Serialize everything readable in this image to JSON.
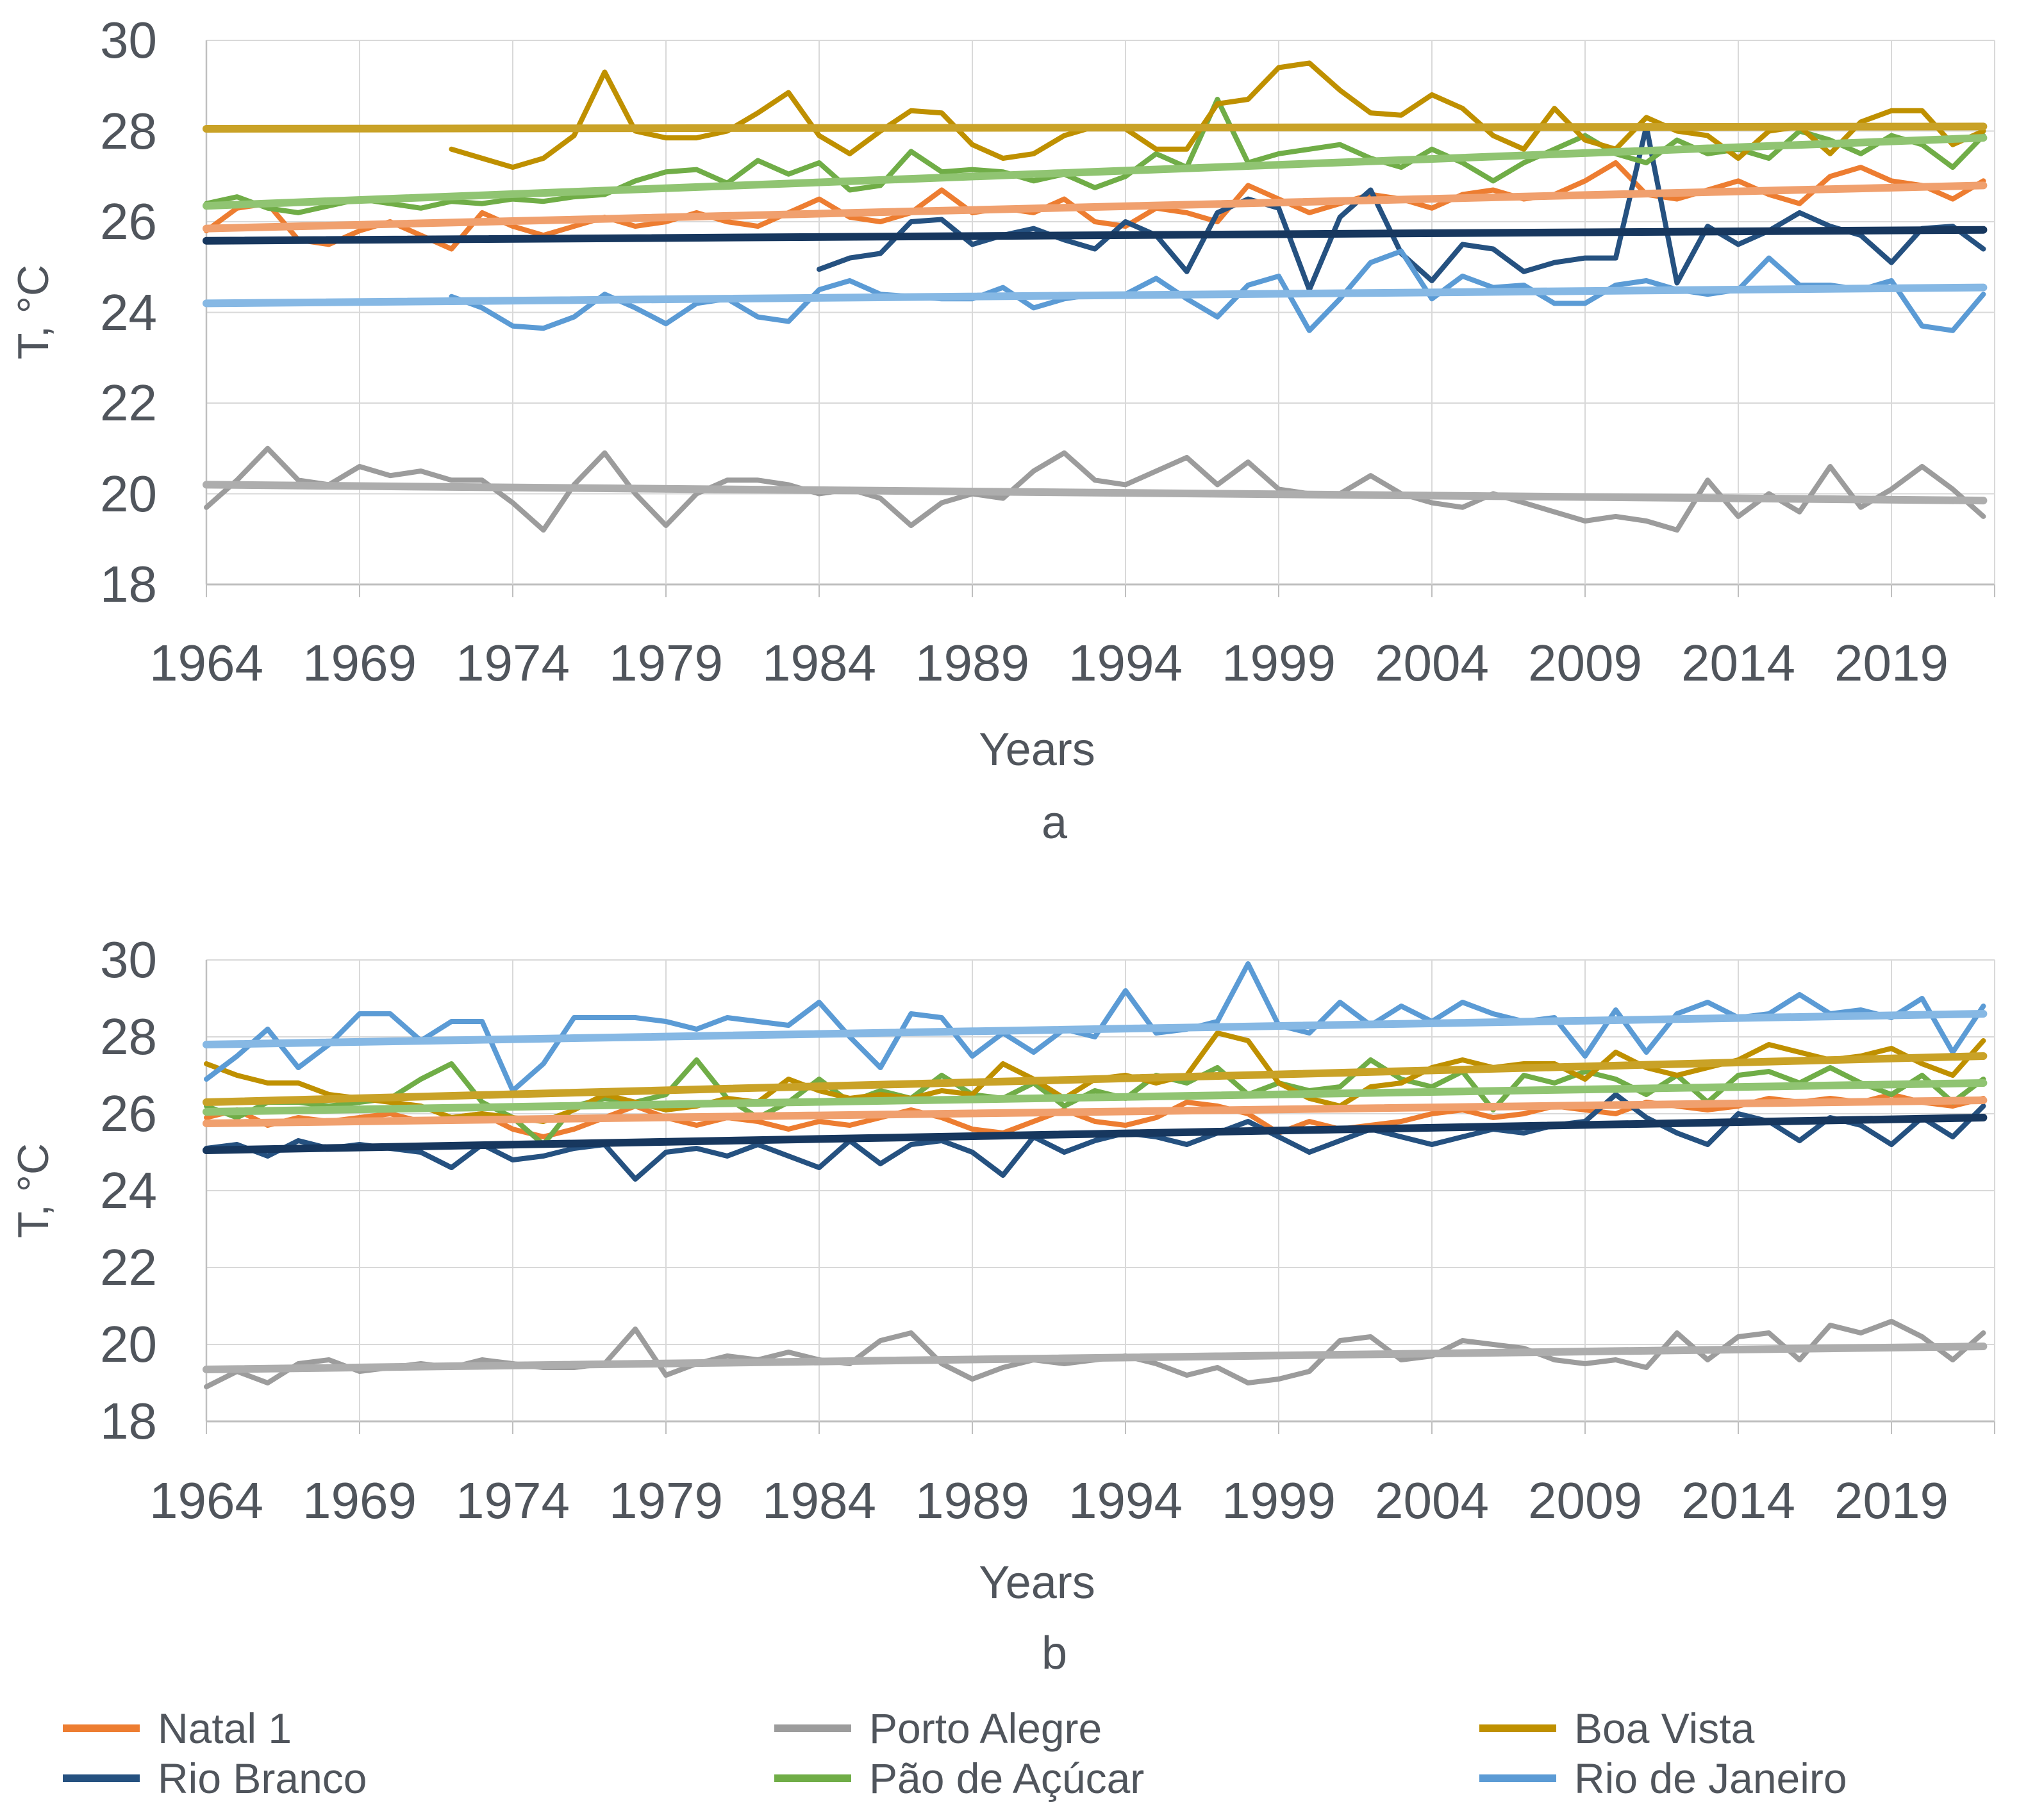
{
  "figure": {
    "y_axis_title": "T, °C",
    "x_axis_title": "Years",
    "text_color": "#50555c",
    "grid_color": "#D9D9D9",
    "axis_line_color": "#BFBFBF",
    "background": "#FFFFFF"
  },
  "legend": [
    {
      "label": "Natal 1",
      "color": "#ED7D31"
    },
    {
      "label": "Porto Alegre",
      "color": "#9C9C9C"
    },
    {
      "label": "Boa Vista",
      "color": "#BF9000"
    },
    {
      "label": "Rio Branco",
      "color": "#255180"
    },
    {
      "label": "Pão de Açúcar",
      "color": "#70AD47"
    },
    {
      "label": "Rio de Janeiro",
      "color": "#5B9BD5"
    }
  ],
  "chart_data": [
    {
      "id": "a",
      "type": "line",
      "panel_label": "a",
      "xlabel": "Years",
      "ylabel": "T, °C",
      "x_start": 1964,
      "x_end": 2022,
      "x_ticks": [
        1964,
        1969,
        1974,
        1979,
        1984,
        1989,
        1994,
        1999,
        2004,
        2009,
        2014,
        2019
      ],
      "y_ticks": [
        30,
        28,
        26,
        24,
        22,
        20,
        18
      ],
      "ylim": [
        18,
        30
      ],
      "grid": true,
      "legend_position": "bottom",
      "series": [
        {
          "name": "Natal 1",
          "color": "#ED7D31",
          "trend_color": "#F0A06E",
          "trend": [
            25.85,
            26.8
          ],
          "values": [
            25.8,
            26.3,
            26.4,
            25.6,
            25.5,
            25.8,
            26.0,
            25.7,
            25.4,
            26.2,
            25.9,
            25.7,
            25.9,
            26.1,
            25.9,
            26.0,
            26.2,
            26.0,
            25.9,
            26.2,
            26.5,
            26.1,
            26.0,
            26.2,
            26.7,
            26.2,
            26.3,
            26.2,
            26.5,
            26.0,
            25.9,
            26.3,
            26.2,
            26.0,
            26.8,
            26.5,
            26.2,
            26.4,
            26.6,
            26.5,
            26.3,
            26.6,
            26.7,
            26.5,
            26.6,
            26.9,
            27.3,
            26.6,
            26.5,
            26.7,
            26.9,
            26.6,
            26.4,
            27.0,
            27.2,
            26.9,
            26.8,
            26.5,
            26.9
          ]
        },
        {
          "name": "Rio Branco",
          "color": "#255180",
          "trend_color": "#17375E",
          "trend": [
            25.58,
            25.82
          ],
          "values": [
            null,
            null,
            null,
            null,
            null,
            null,
            null,
            null,
            null,
            null,
            null,
            null,
            null,
            null,
            null,
            null,
            null,
            null,
            null,
            null,
            24.95,
            25.2,
            25.3,
            26.0,
            26.05,
            25.5,
            25.7,
            25.85,
            25.6,
            25.4,
            26.0,
            25.7,
            24.9,
            26.2,
            26.5,
            26.3,
            24.5,
            26.1,
            26.7,
            25.3,
            24.7,
            25.5,
            25.4,
            24.9,
            25.1,
            25.2,
            25.2,
            28.1,
            24.65,
            25.9,
            25.5,
            25.8,
            26.2,
            25.9,
            25.7,
            25.1,
            25.85,
            25.9,
            25.4
          ]
        },
        {
          "name": "Porto Alegre",
          "color": "#9C9C9C",
          "trend_color": "#ADADAD",
          "trend": [
            20.2,
            19.85
          ],
          "values": [
            19.7,
            20.3,
            21.0,
            20.3,
            20.2,
            20.6,
            20.4,
            20.5,
            20.3,
            20.3,
            19.8,
            19.2,
            20.2,
            20.9,
            20.0,
            19.3,
            20.0,
            20.3,
            20.3,
            20.2,
            20.0,
            20.1,
            19.9,
            19.3,
            19.8,
            20.0,
            19.9,
            20.5,
            20.9,
            20.3,
            20.2,
            20.5,
            20.8,
            20.2,
            20.7,
            20.1,
            20.0,
            20.0,
            20.4,
            20.0,
            19.8,
            19.7,
            20.0,
            19.8,
            19.6,
            19.4,
            19.5,
            19.4,
            19.2,
            20.3,
            19.5,
            20.0,
            19.6,
            20.6,
            19.7,
            20.1,
            20.6,
            20.1,
            19.5
          ]
        },
        {
          "name": "Pão de Açúcar",
          "color": "#70AD47",
          "trend_color": "#90C472",
          "trend": [
            26.35,
            27.85
          ],
          "values": [
            26.4,
            26.55,
            26.3,
            26.2,
            26.35,
            26.5,
            26.4,
            26.3,
            26.45,
            26.4,
            26.5,
            26.45,
            26.55,
            26.6,
            26.9,
            27.1,
            27.15,
            26.85,
            27.35,
            27.05,
            27.3,
            26.7,
            26.8,
            27.55,
            27.1,
            27.15,
            27.1,
            26.9,
            27.05,
            26.75,
            27.0,
            27.5,
            27.2,
            28.7,
            27.3,
            27.5,
            27.6,
            27.7,
            27.4,
            27.2,
            27.6,
            27.3,
            26.9,
            27.3,
            27.6,
            27.9,
            27.5,
            27.3,
            27.8,
            27.5,
            27.6,
            27.4,
            28.0,
            27.8,
            27.5,
            27.9,
            27.7,
            27.2,
            27.9
          ]
        },
        {
          "name": "Boa Vista",
          "color": "#BF9000",
          "trend_color": "#C9A227",
          "trend": [
            28.05,
            28.1
          ],
          "values": [
            null,
            null,
            null,
            null,
            null,
            null,
            null,
            null,
            27.6,
            27.4,
            27.2,
            27.4,
            27.9,
            29.3,
            28.0,
            27.85,
            27.85,
            28.0,
            28.4,
            28.85,
            27.9,
            27.5,
            28.0,
            28.45,
            28.4,
            27.7,
            27.4,
            27.5,
            27.9,
            28.1,
            28.05,
            27.6,
            27.6,
            28.6,
            28.7,
            29.4,
            29.5,
            28.9,
            28.4,
            28.35,
            28.8,
            28.5,
            27.9,
            27.6,
            28.5,
            27.8,
            27.6,
            28.3,
            28.0,
            27.9,
            27.4,
            28.0,
            28.1,
            27.5,
            28.2,
            28.45,
            28.45,
            27.7,
            28.0
          ]
        },
        {
          "name": "Rio de Janeiro",
          "color": "#5B9BD5",
          "trend_color": "#86B8E4",
          "trend": [
            24.2,
            24.55
          ],
          "values": [
            null,
            null,
            null,
            null,
            null,
            null,
            null,
            null,
            24.35,
            24.1,
            23.7,
            23.65,
            23.9,
            24.4,
            24.1,
            23.75,
            24.2,
            24.3,
            23.9,
            23.8,
            24.5,
            24.7,
            24.4,
            24.35,
            24.3,
            24.3,
            24.55,
            24.1,
            24.3,
            24.4,
            24.4,
            24.75,
            24.3,
            23.9,
            24.6,
            24.8,
            23.6,
            24.3,
            25.1,
            25.35,
            24.3,
            24.8,
            24.55,
            24.6,
            24.2,
            24.2,
            24.6,
            24.7,
            24.5,
            24.4,
            24.5,
            25.2,
            24.6,
            24.6,
            24.5,
            24.7,
            23.7,
            23.6,
            24.4
          ]
        }
      ]
    },
    {
      "id": "b",
      "type": "line",
      "panel_label": "b",
      "xlabel": "Years",
      "ylabel": "T, °C",
      "x_start": 1964,
      "x_end": 2022,
      "x_ticks": [
        1964,
        1969,
        1974,
        1979,
        1984,
        1989,
        1994,
        1999,
        2004,
        2009,
        2014,
        2019
      ],
      "y_ticks": [
        30,
        28,
        26,
        24,
        22,
        20,
        18
      ],
      "ylim": [
        18,
        30
      ],
      "grid": true,
      "legend_position": "bottom",
      "series": [
        {
          "name": "Natal 1",
          "color": "#ED7D31",
          "trend_color": "#F0A06E",
          "trend": [
            25.75,
            26.35
          ],
          "values": [
            25.9,
            26.1,
            25.7,
            25.9,
            25.8,
            25.9,
            26.0,
            25.8,
            25.9,
            26.0,
            25.6,
            25.4,
            25.6,
            25.9,
            26.2,
            25.9,
            25.7,
            25.9,
            25.8,
            25.6,
            25.8,
            25.7,
            25.9,
            26.1,
            25.9,
            25.6,
            25.5,
            25.8,
            26.1,
            25.8,
            25.7,
            25.9,
            26.3,
            26.2,
            26.0,
            25.5,
            25.8,
            25.6,
            25.7,
            25.8,
            26.0,
            26.1,
            25.9,
            26.0,
            26.2,
            26.1,
            26.0,
            26.3,
            26.2,
            26.1,
            26.2,
            26.4,
            26.3,
            26.4,
            26.3,
            26.5,
            26.3,
            26.2,
            26.4
          ]
        },
        {
          "name": "Rio Branco",
          "color": "#255180",
          "trend_color": "#17375E",
          "trend": [
            25.05,
            25.9
          ],
          "values": [
            25.1,
            25.2,
            24.9,
            25.3,
            25.1,
            25.2,
            25.1,
            25.0,
            24.6,
            25.2,
            24.8,
            24.9,
            25.1,
            25.2,
            24.3,
            25.0,
            25.1,
            24.9,
            25.2,
            24.9,
            24.6,
            25.3,
            24.7,
            25.2,
            25.3,
            25.0,
            24.4,
            25.4,
            25.0,
            25.3,
            25.5,
            25.4,
            25.2,
            25.5,
            25.8,
            25.4,
            25.0,
            25.3,
            25.6,
            25.4,
            25.2,
            25.4,
            25.6,
            25.5,
            25.7,
            25.8,
            26.5,
            25.9,
            25.5,
            25.2,
            26.0,
            25.8,
            25.3,
            25.9,
            25.7,
            25.2,
            25.9,
            25.4,
            26.2
          ]
        },
        {
          "name": "Porto Alegre",
          "color": "#9C9C9C",
          "trend_color": "#ADADAD",
          "trend": [
            19.35,
            19.95
          ],
          "values": [
            18.9,
            19.3,
            19.0,
            19.5,
            19.6,
            19.3,
            19.4,
            19.5,
            19.4,
            19.6,
            19.5,
            19.4,
            19.4,
            19.5,
            20.4,
            19.2,
            19.5,
            19.7,
            19.6,
            19.8,
            19.6,
            19.5,
            20.1,
            20.3,
            19.5,
            19.1,
            19.4,
            19.6,
            19.5,
            19.6,
            19.7,
            19.5,
            19.2,
            19.4,
            19.0,
            19.1,
            19.3,
            20.1,
            20.2,
            19.6,
            19.7,
            20.1,
            20.0,
            19.9,
            19.6,
            19.5,
            19.6,
            19.4,
            20.3,
            19.6,
            20.2,
            20.3,
            19.6,
            20.5,
            20.3,
            20.6,
            20.2,
            19.6,
            20.3
          ]
        },
        {
          "name": "Pão de Açúcar",
          "color": "#70AD47",
          "trend_color": "#90C472",
          "trend": [
            26.05,
            26.8
          ],
          "values": [
            26.2,
            25.9,
            26.3,
            26.3,
            26.2,
            26.3,
            26.4,
            26.9,
            27.3,
            26.3,
            25.9,
            25.2,
            26.2,
            26.4,
            26.3,
            26.5,
            27.4,
            26.4,
            25.9,
            26.3,
            26.9,
            26.3,
            26.6,
            26.4,
            27.0,
            26.5,
            26.4,
            26.8,
            26.2,
            26.6,
            26.4,
            27.0,
            26.8,
            27.2,
            26.5,
            26.8,
            26.6,
            26.7,
            27.4,
            26.9,
            26.7,
            27.1,
            26.1,
            27.0,
            26.8,
            27.1,
            26.9,
            26.5,
            27.0,
            26.3,
            27.0,
            27.1,
            26.8,
            27.2,
            26.8,
            26.5,
            27.0,
            26.3,
            26.9
          ]
        },
        {
          "name": "Boa Vista",
          "color": "#BF9000",
          "trend_color": "#C9A227",
          "trend": [
            26.3,
            27.5
          ],
          "values": [
            27.3,
            27.0,
            26.8,
            26.8,
            26.5,
            26.4,
            26.3,
            26.2,
            25.9,
            26.0,
            25.9,
            25.8,
            26.1,
            26.5,
            26.3,
            26.1,
            26.2,
            26.4,
            26.3,
            26.9,
            26.6,
            26.4,
            26.5,
            26.4,
            26.6,
            26.5,
            27.3,
            26.9,
            26.4,
            26.9,
            27.0,
            26.8,
            27.0,
            28.1,
            27.9,
            26.8,
            26.4,
            26.2,
            26.7,
            26.8,
            27.2,
            27.4,
            27.2,
            27.3,
            27.3,
            26.9,
            27.6,
            27.2,
            27.0,
            27.2,
            27.4,
            27.8,
            27.6,
            27.4,
            27.5,
            27.7,
            27.3,
            27.0,
            27.9
          ]
        },
        {
          "name": "Rio de Janeiro",
          "color": "#5B9BD5",
          "trend_color": "#86B8E4",
          "trend": [
            27.8,
            28.6
          ],
          "values": [
            26.9,
            27.5,
            28.2,
            27.2,
            27.8,
            28.6,
            28.6,
            27.9,
            28.4,
            28.4,
            26.6,
            27.3,
            28.5,
            28.5,
            28.5,
            28.4,
            28.2,
            28.5,
            28.4,
            28.3,
            28.9,
            28.0,
            27.2,
            28.6,
            28.5,
            27.5,
            28.1,
            27.6,
            28.2,
            28.0,
            29.2,
            28.1,
            28.2,
            28.4,
            29.9,
            28.3,
            28.1,
            28.9,
            28.3,
            28.8,
            28.4,
            28.9,
            28.6,
            28.4,
            28.5,
            27.5,
            28.7,
            27.6,
            28.6,
            28.9,
            28.5,
            28.6,
            29.1,
            28.6,
            28.7,
            28.5,
            29.0,
            27.6,
            28.8
          ]
        }
      ]
    }
  ]
}
